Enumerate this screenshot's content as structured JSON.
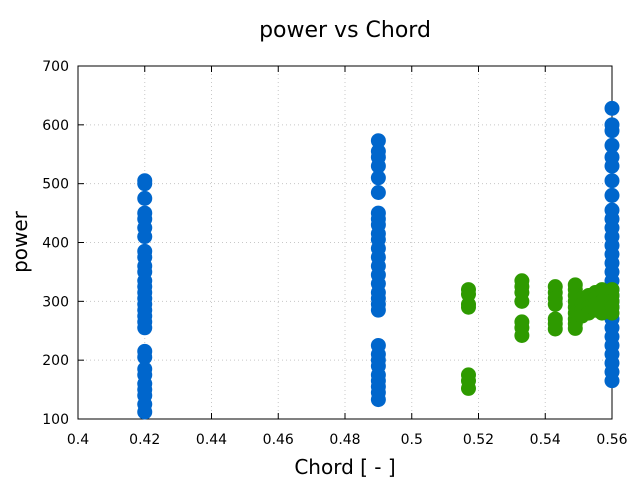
{
  "chart_data": {
    "type": "scatter",
    "title": "power vs Chord",
    "xlabel": "Chord [ - ]",
    "ylabel": "power",
    "xlim": [
      0.4,
      0.56
    ],
    "ylim": [
      100,
      700
    ],
    "xticks": [
      0.4,
      0.42,
      0.44,
      0.46,
      0.48,
      0.5,
      0.52,
      0.54,
      0.56
    ],
    "xtick_labels": [
      "0.4",
      "0.42",
      "0.44",
      "0.46",
      "0.48",
      "0.5",
      "0.52",
      "0.54",
      "0.56"
    ],
    "yticks": [
      100,
      200,
      300,
      400,
      500,
      600,
      700
    ],
    "ytick_labels": [
      "100",
      "200",
      "300",
      "400",
      "500",
      "600",
      "700"
    ],
    "grid": true,
    "series": [
      {
        "color": "#0066cc",
        "points": [
          [
            0.42,
            505
          ],
          [
            0.42,
            500
          ],
          [
            0.42,
            475
          ],
          [
            0.42,
            450
          ],
          [
            0.42,
            440
          ],
          [
            0.42,
            425
          ],
          [
            0.42,
            410
          ],
          [
            0.42,
            385
          ],
          [
            0.42,
            375
          ],
          [
            0.42,
            360
          ],
          [
            0.42,
            350
          ],
          [
            0.42,
            335
          ],
          [
            0.42,
            325
          ],
          [
            0.42,
            315
          ],
          [
            0.42,
            305
          ],
          [
            0.42,
            295
          ],
          [
            0.42,
            285
          ],
          [
            0.42,
            275
          ],
          [
            0.42,
            265
          ],
          [
            0.42,
            255
          ],
          [
            0.42,
            215
          ],
          [
            0.42,
            205
          ],
          [
            0.42,
            185
          ],
          [
            0.42,
            175
          ],
          [
            0.42,
            160
          ],
          [
            0.42,
            150
          ],
          [
            0.42,
            140
          ],
          [
            0.42,
            125
          ],
          [
            0.42,
            112
          ],
          [
            0.49,
            573
          ],
          [
            0.49,
            555
          ],
          [
            0.49,
            545
          ],
          [
            0.49,
            530
          ],
          [
            0.49,
            510
          ],
          [
            0.49,
            485
          ],
          [
            0.49,
            450
          ],
          [
            0.49,
            440
          ],
          [
            0.49,
            430
          ],
          [
            0.49,
            415
          ],
          [
            0.49,
            405
          ],
          [
            0.49,
            390
          ],
          [
            0.49,
            375
          ],
          [
            0.49,
            360
          ],
          [
            0.49,
            345
          ],
          [
            0.49,
            330
          ],
          [
            0.49,
            315
          ],
          [
            0.49,
            305
          ],
          [
            0.49,
            295
          ],
          [
            0.49,
            285
          ],
          [
            0.49,
            225
          ],
          [
            0.49,
            210
          ],
          [
            0.49,
            200
          ],
          [
            0.49,
            190
          ],
          [
            0.49,
            175
          ],
          [
            0.49,
            165
          ],
          [
            0.49,
            155
          ],
          [
            0.49,
            145
          ],
          [
            0.49,
            133
          ],
          [
            0.56,
            628
          ],
          [
            0.56,
            600
          ],
          [
            0.56,
            590
          ],
          [
            0.56,
            565
          ],
          [
            0.56,
            545
          ],
          [
            0.56,
            530
          ],
          [
            0.56,
            505
          ],
          [
            0.56,
            480
          ],
          [
            0.56,
            455
          ],
          [
            0.56,
            440
          ],
          [
            0.56,
            425
          ],
          [
            0.56,
            410
          ],
          [
            0.56,
            395
          ],
          [
            0.56,
            380
          ],
          [
            0.56,
            365
          ],
          [
            0.56,
            350
          ],
          [
            0.56,
            335
          ],
          [
            0.56,
            320
          ],
          [
            0.56,
            310
          ],
          [
            0.56,
            300
          ],
          [
            0.56,
            290
          ],
          [
            0.56,
            270
          ],
          [
            0.56,
            255
          ],
          [
            0.56,
            240
          ],
          [
            0.56,
            225
          ],
          [
            0.56,
            210
          ],
          [
            0.56,
            195
          ],
          [
            0.56,
            180
          ],
          [
            0.56,
            165
          ]
        ]
      },
      {
        "color": "#2e9a00",
        "points": [
          [
            0.517,
            320
          ],
          [
            0.517,
            312
          ],
          [
            0.517,
            295
          ],
          [
            0.517,
            290
          ],
          [
            0.517,
            175
          ],
          [
            0.517,
            165
          ],
          [
            0.517,
            152
          ],
          [
            0.533,
            335
          ],
          [
            0.533,
            325
          ],
          [
            0.533,
            315
          ],
          [
            0.533,
            300
          ],
          [
            0.533,
            265
          ],
          [
            0.533,
            255
          ],
          [
            0.533,
            242
          ],
          [
            0.543,
            325
          ],
          [
            0.543,
            315
          ],
          [
            0.543,
            305
          ],
          [
            0.543,
            295
          ],
          [
            0.543,
            270
          ],
          [
            0.543,
            262
          ],
          [
            0.543,
            253
          ],
          [
            0.549,
            328
          ],
          [
            0.549,
            320
          ],
          [
            0.549,
            310
          ],
          [
            0.549,
            300
          ],
          [
            0.549,
            290
          ],
          [
            0.549,
            280
          ],
          [
            0.549,
            270
          ],
          [
            0.549,
            262
          ],
          [
            0.549,
            254
          ],
          [
            0.551,
            305
          ],
          [
            0.551,
            295
          ],
          [
            0.551,
            285
          ],
          [
            0.551,
            275
          ],
          [
            0.553,
            310
          ],
          [
            0.553,
            300
          ],
          [
            0.553,
            290
          ],
          [
            0.553,
            280
          ],
          [
            0.555,
            315
          ],
          [
            0.555,
            305
          ],
          [
            0.555,
            295
          ],
          [
            0.555,
            285
          ],
          [
            0.557,
            320
          ],
          [
            0.557,
            310
          ],
          [
            0.557,
            300
          ],
          [
            0.557,
            290
          ],
          [
            0.557,
            280
          ],
          [
            0.56,
            320
          ],
          [
            0.56,
            310
          ],
          [
            0.56,
            300
          ],
          [
            0.56,
            290
          ],
          [
            0.56,
            280
          ]
        ]
      }
    ]
  }
}
